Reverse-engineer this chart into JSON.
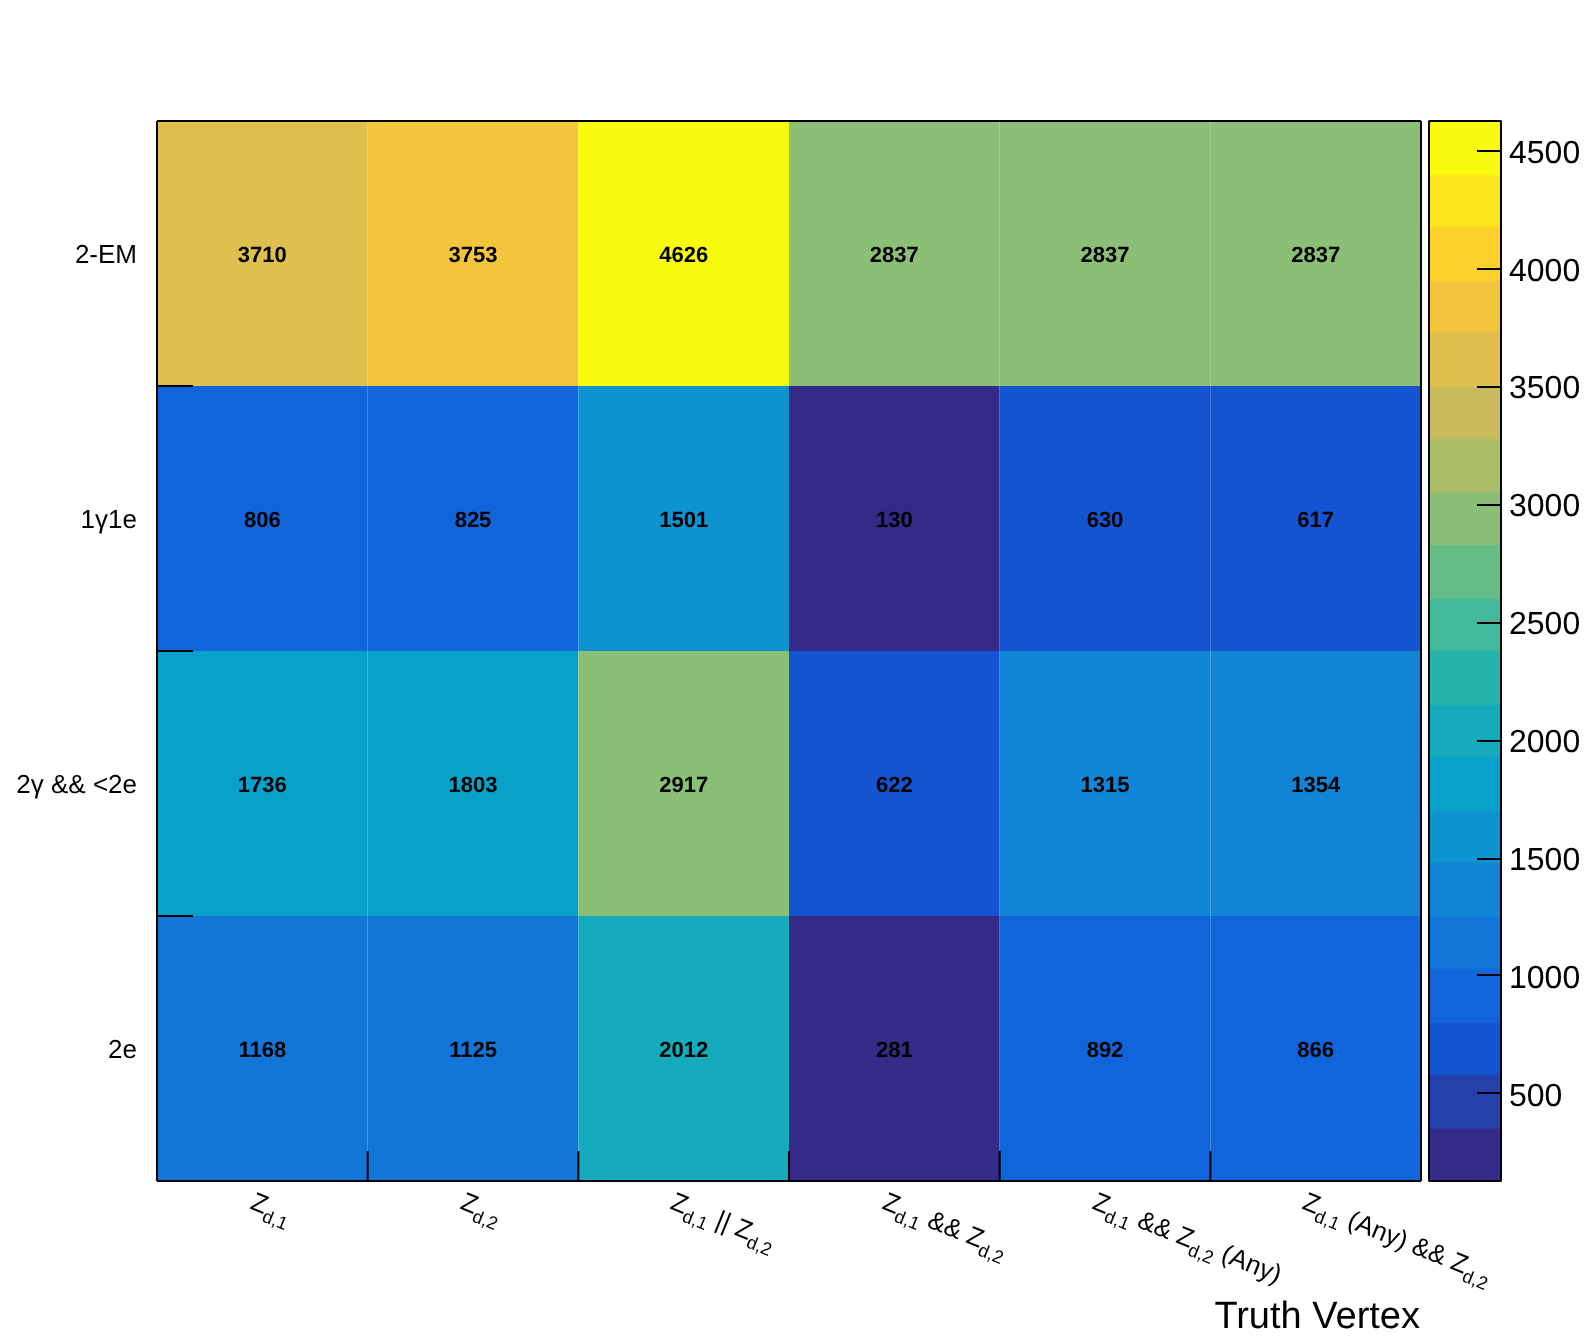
{
  "chart_data": {
    "type": "heatmap",
    "xlabel": "Truth Vertex",
    "categories": [
      "Z$_{d,1}$",
      "Z$_{d,2}$",
      "Z$_{d,1}$ || Z$_{d,2}$",
      "Z$_{d,1}$ && Z$_{d,2}$",
      "Z$_{d,1}$ && Z$_{d,2}$ (Any)",
      "Z$_{d,1}$ (Any) && Z$_{d,2}$"
    ],
    "y_categories": [
      "2-EM",
      "1γ1e",
      "2γ && <2e",
      "2e"
    ],
    "cells": [
      [
        3710,
        3753,
        4626,
        2837,
        2837,
        2837
      ],
      [
        806,
        825,
        1501,
        130,
        630,
        617
      ],
      [
        1736,
        1803,
        2917,
        622,
        1315,
        1354
      ],
      [
        1168,
        1125,
        2012,
        281,
        892,
        866
      ]
    ],
    "data_labels": true,
    "clim": [
      130,
      4626
    ],
    "cticks": [
      500,
      1000,
      1500,
      2000,
      2500,
      3000,
      3500,
      4000,
      4500
    ]
  }
}
